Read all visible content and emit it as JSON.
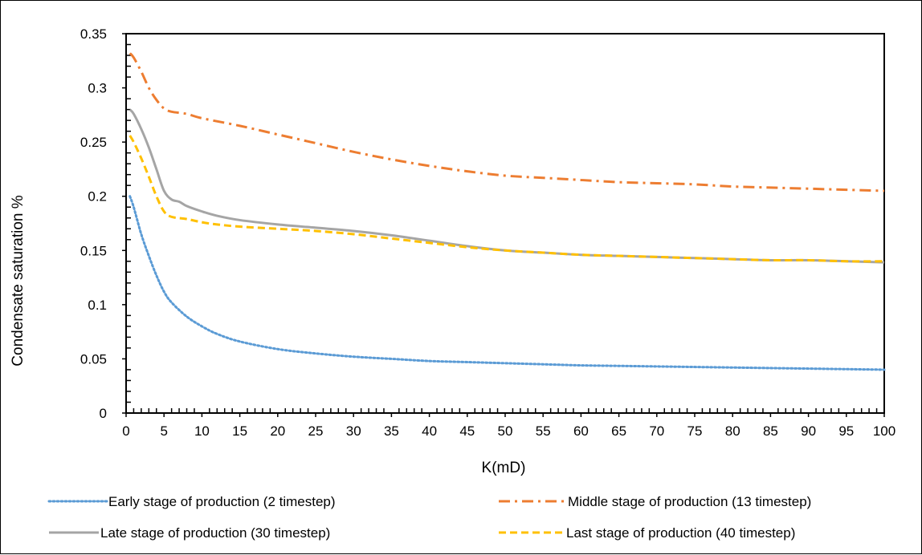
{
  "chart_data": {
    "type": "line",
    "xlabel": "K(mD)",
    "ylabel": "Condensate saturation %",
    "xlim": [
      0,
      100
    ],
    "ylim": [
      0,
      0.35
    ],
    "xticks": [
      0,
      5,
      10,
      15,
      20,
      25,
      30,
      35,
      40,
      45,
      50,
      55,
      60,
      65,
      70,
      75,
      80,
      85,
      90,
      95,
      100
    ],
    "yticks": [
      0,
      0.05,
      0.1,
      0.15,
      0.2,
      0.25,
      0.3,
      0.35
    ],
    "grid": false,
    "legend_position": "bottom",
    "series": [
      {
        "name": "Early stage of production (2 timestep)",
        "color": "#5B9BD5",
        "style": "dotted",
        "x": [
          0.5,
          1,
          2,
          3,
          4,
          5,
          6,
          8,
          10,
          12,
          15,
          20,
          25,
          30,
          35,
          40,
          45,
          50,
          55,
          60,
          65,
          70,
          75,
          80,
          85,
          90,
          95,
          100
        ],
        "y": [
          0.2,
          0.19,
          0.165,
          0.145,
          0.127,
          0.112,
          0.102,
          0.089,
          0.08,
          0.073,
          0.066,
          0.059,
          0.055,
          0.052,
          0.05,
          0.048,
          0.047,
          0.046,
          0.045,
          0.044,
          0.0435,
          0.043,
          0.0425,
          0.042,
          0.0415,
          0.041,
          0.0405,
          0.04
        ]
      },
      {
        "name": "Middle stage of production (13 timestep)",
        "color": "#ED7D31",
        "style": "dashdot",
        "x": [
          0.5,
          1,
          2,
          3,
          4,
          5,
          6,
          8,
          10,
          15,
          20,
          25,
          30,
          35,
          40,
          45,
          50,
          55,
          60,
          65,
          70,
          75,
          80,
          85,
          90,
          95,
          100
        ],
        "y": [
          0.332,
          0.328,
          0.315,
          0.3,
          0.289,
          0.281,
          0.278,
          0.276,
          0.272,
          0.265,
          0.257,
          0.249,
          0.241,
          0.234,
          0.228,
          0.223,
          0.219,
          0.217,
          0.215,
          0.213,
          0.212,
          0.211,
          0.209,
          0.208,
          0.207,
          0.206,
          0.205
        ]
      },
      {
        "name": "Late stage of production (30 timestep)",
        "color": "#A5A5A5",
        "style": "solid",
        "x": [
          0.5,
          1,
          2,
          3,
          4,
          5,
          6,
          7,
          8,
          10,
          12,
          15,
          20,
          25,
          30,
          35,
          40,
          45,
          50,
          55,
          60,
          65,
          70,
          75,
          80,
          85,
          90,
          95,
          100
        ],
        "y": [
          0.28,
          0.276,
          0.262,
          0.245,
          0.225,
          0.205,
          0.197,
          0.195,
          0.191,
          0.186,
          0.182,
          0.178,
          0.174,
          0.171,
          0.168,
          0.164,
          0.159,
          0.154,
          0.15,
          0.148,
          0.146,
          0.145,
          0.144,
          0.143,
          0.142,
          0.141,
          0.141,
          0.14,
          0.139
        ]
      },
      {
        "name": "Last stage of production (40 timestep)",
        "color": "#FFC000",
        "style": "dashed",
        "x": [
          0.5,
          1,
          2,
          3,
          4,
          5,
          6,
          8,
          10,
          12,
          15,
          20,
          25,
          30,
          35,
          40,
          45,
          50,
          55,
          60,
          65,
          70,
          75,
          80,
          85,
          90,
          95,
          100
        ],
        "y": [
          0.256,
          0.25,
          0.235,
          0.218,
          0.2,
          0.186,
          0.181,
          0.179,
          0.176,
          0.174,
          0.172,
          0.17,
          0.168,
          0.165,
          0.161,
          0.157,
          0.153,
          0.15,
          0.148,
          0.146,
          0.145,
          0.144,
          0.143,
          0.142,
          0.141,
          0.141,
          0.14,
          0.14
        ]
      }
    ]
  }
}
